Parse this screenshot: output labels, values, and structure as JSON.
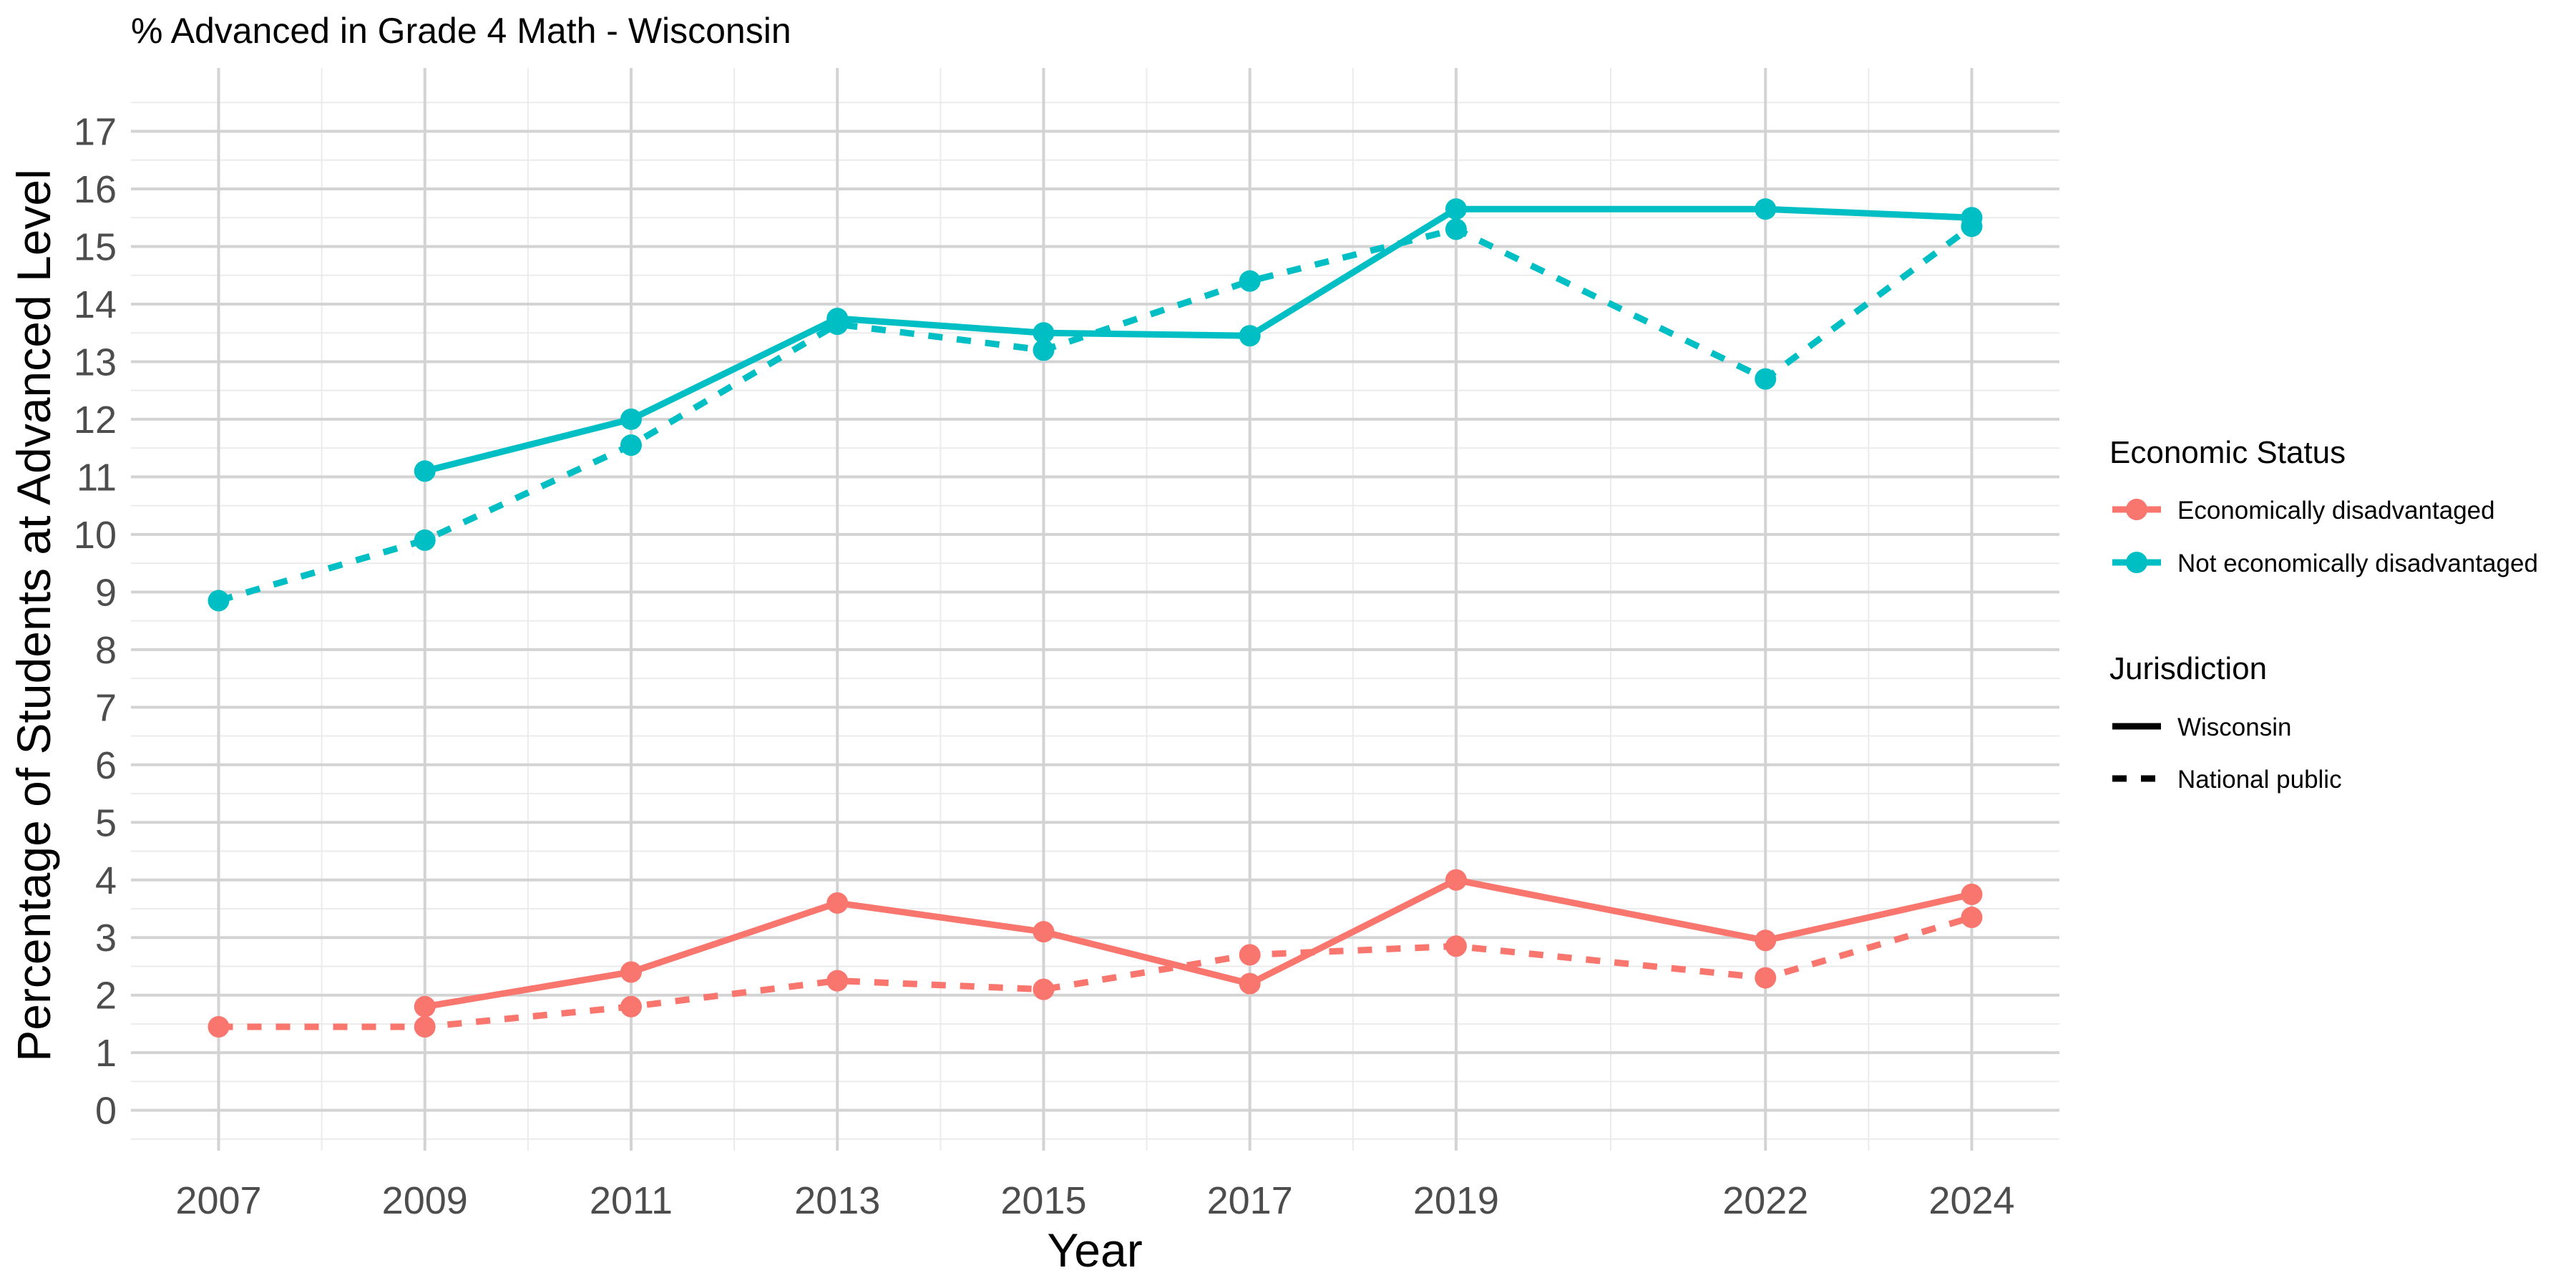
{
  "chart_data": {
    "type": "line",
    "title": "% Advanced in Grade 4 Math - Wisconsin",
    "xlabel": "Year",
    "ylabel": "Percentage of Students at Advanced Level",
    "x_ticks": [
      2007,
      2009,
      2011,
      2013,
      2015,
      2017,
      2019,
      2022,
      2024
    ],
    "y_ticks": [
      0,
      1,
      2,
      3,
      4,
      5,
      6,
      7,
      8,
      9,
      10,
      11,
      12,
      13,
      14,
      15,
      16,
      17
    ],
    "xlim": [
      2006.15,
      2024.85
    ],
    "ylim": [
      -0.7,
      18.1
    ],
    "grid": true,
    "legend_placement": "right",
    "legends": {
      "color": {
        "title": "Economic Status",
        "entries": [
          {
            "label": "Economically disadvantaged",
            "color": "#F8766D"
          },
          {
            "label": "Not economically disadvantaged",
            "color": "#00BFC4"
          }
        ]
      },
      "linetype": {
        "title": "Jurisdiction",
        "entries": [
          {
            "label": "Wisconsin",
            "dash": "solid"
          },
          {
            "label": "National public",
            "dash": "dashed"
          }
        ]
      }
    },
    "series": [
      {
        "name": "Economically disadvantaged",
        "jurisdiction": "Wisconsin",
        "color": "#F8766D",
        "dash": "solid",
        "x": [
          2009,
          2011,
          2013,
          2015,
          2017,
          2019,
          2022,
          2024
        ],
        "values": [
          1.8,
          2.4,
          3.6,
          3.1,
          2.2,
          4.0,
          2.95,
          3.75
        ]
      },
      {
        "name": "Economically disadvantaged",
        "jurisdiction": "National public",
        "color": "#F8766D",
        "dash": "dashed",
        "x": [
          2007,
          2009,
          2011,
          2013,
          2015,
          2017,
          2019,
          2022,
          2024
        ],
        "values": [
          1.45,
          1.45,
          1.8,
          2.25,
          2.1,
          2.7,
          2.85,
          2.3,
          3.35
        ]
      },
      {
        "name": "Not economically disadvantaged",
        "jurisdiction": "Wisconsin",
        "color": "#00BFC4",
        "dash": "solid",
        "x": [
          2009,
          2011,
          2013,
          2015,
          2017,
          2019,
          2022,
          2024
        ],
        "values": [
          11.1,
          12.0,
          13.75,
          13.5,
          13.45,
          15.65,
          15.65,
          15.5
        ]
      },
      {
        "name": "Not economically disadvantaged",
        "jurisdiction": "National public",
        "color": "#00BFC4",
        "dash": "dashed",
        "x": [
          2007,
          2009,
          2011,
          2013,
          2015,
          2017,
          2019,
          2022,
          2024
        ],
        "values": [
          8.85,
          9.9,
          11.55,
          13.65,
          13.2,
          14.4,
          15.3,
          12.7,
          15.35
        ]
      }
    ]
  }
}
